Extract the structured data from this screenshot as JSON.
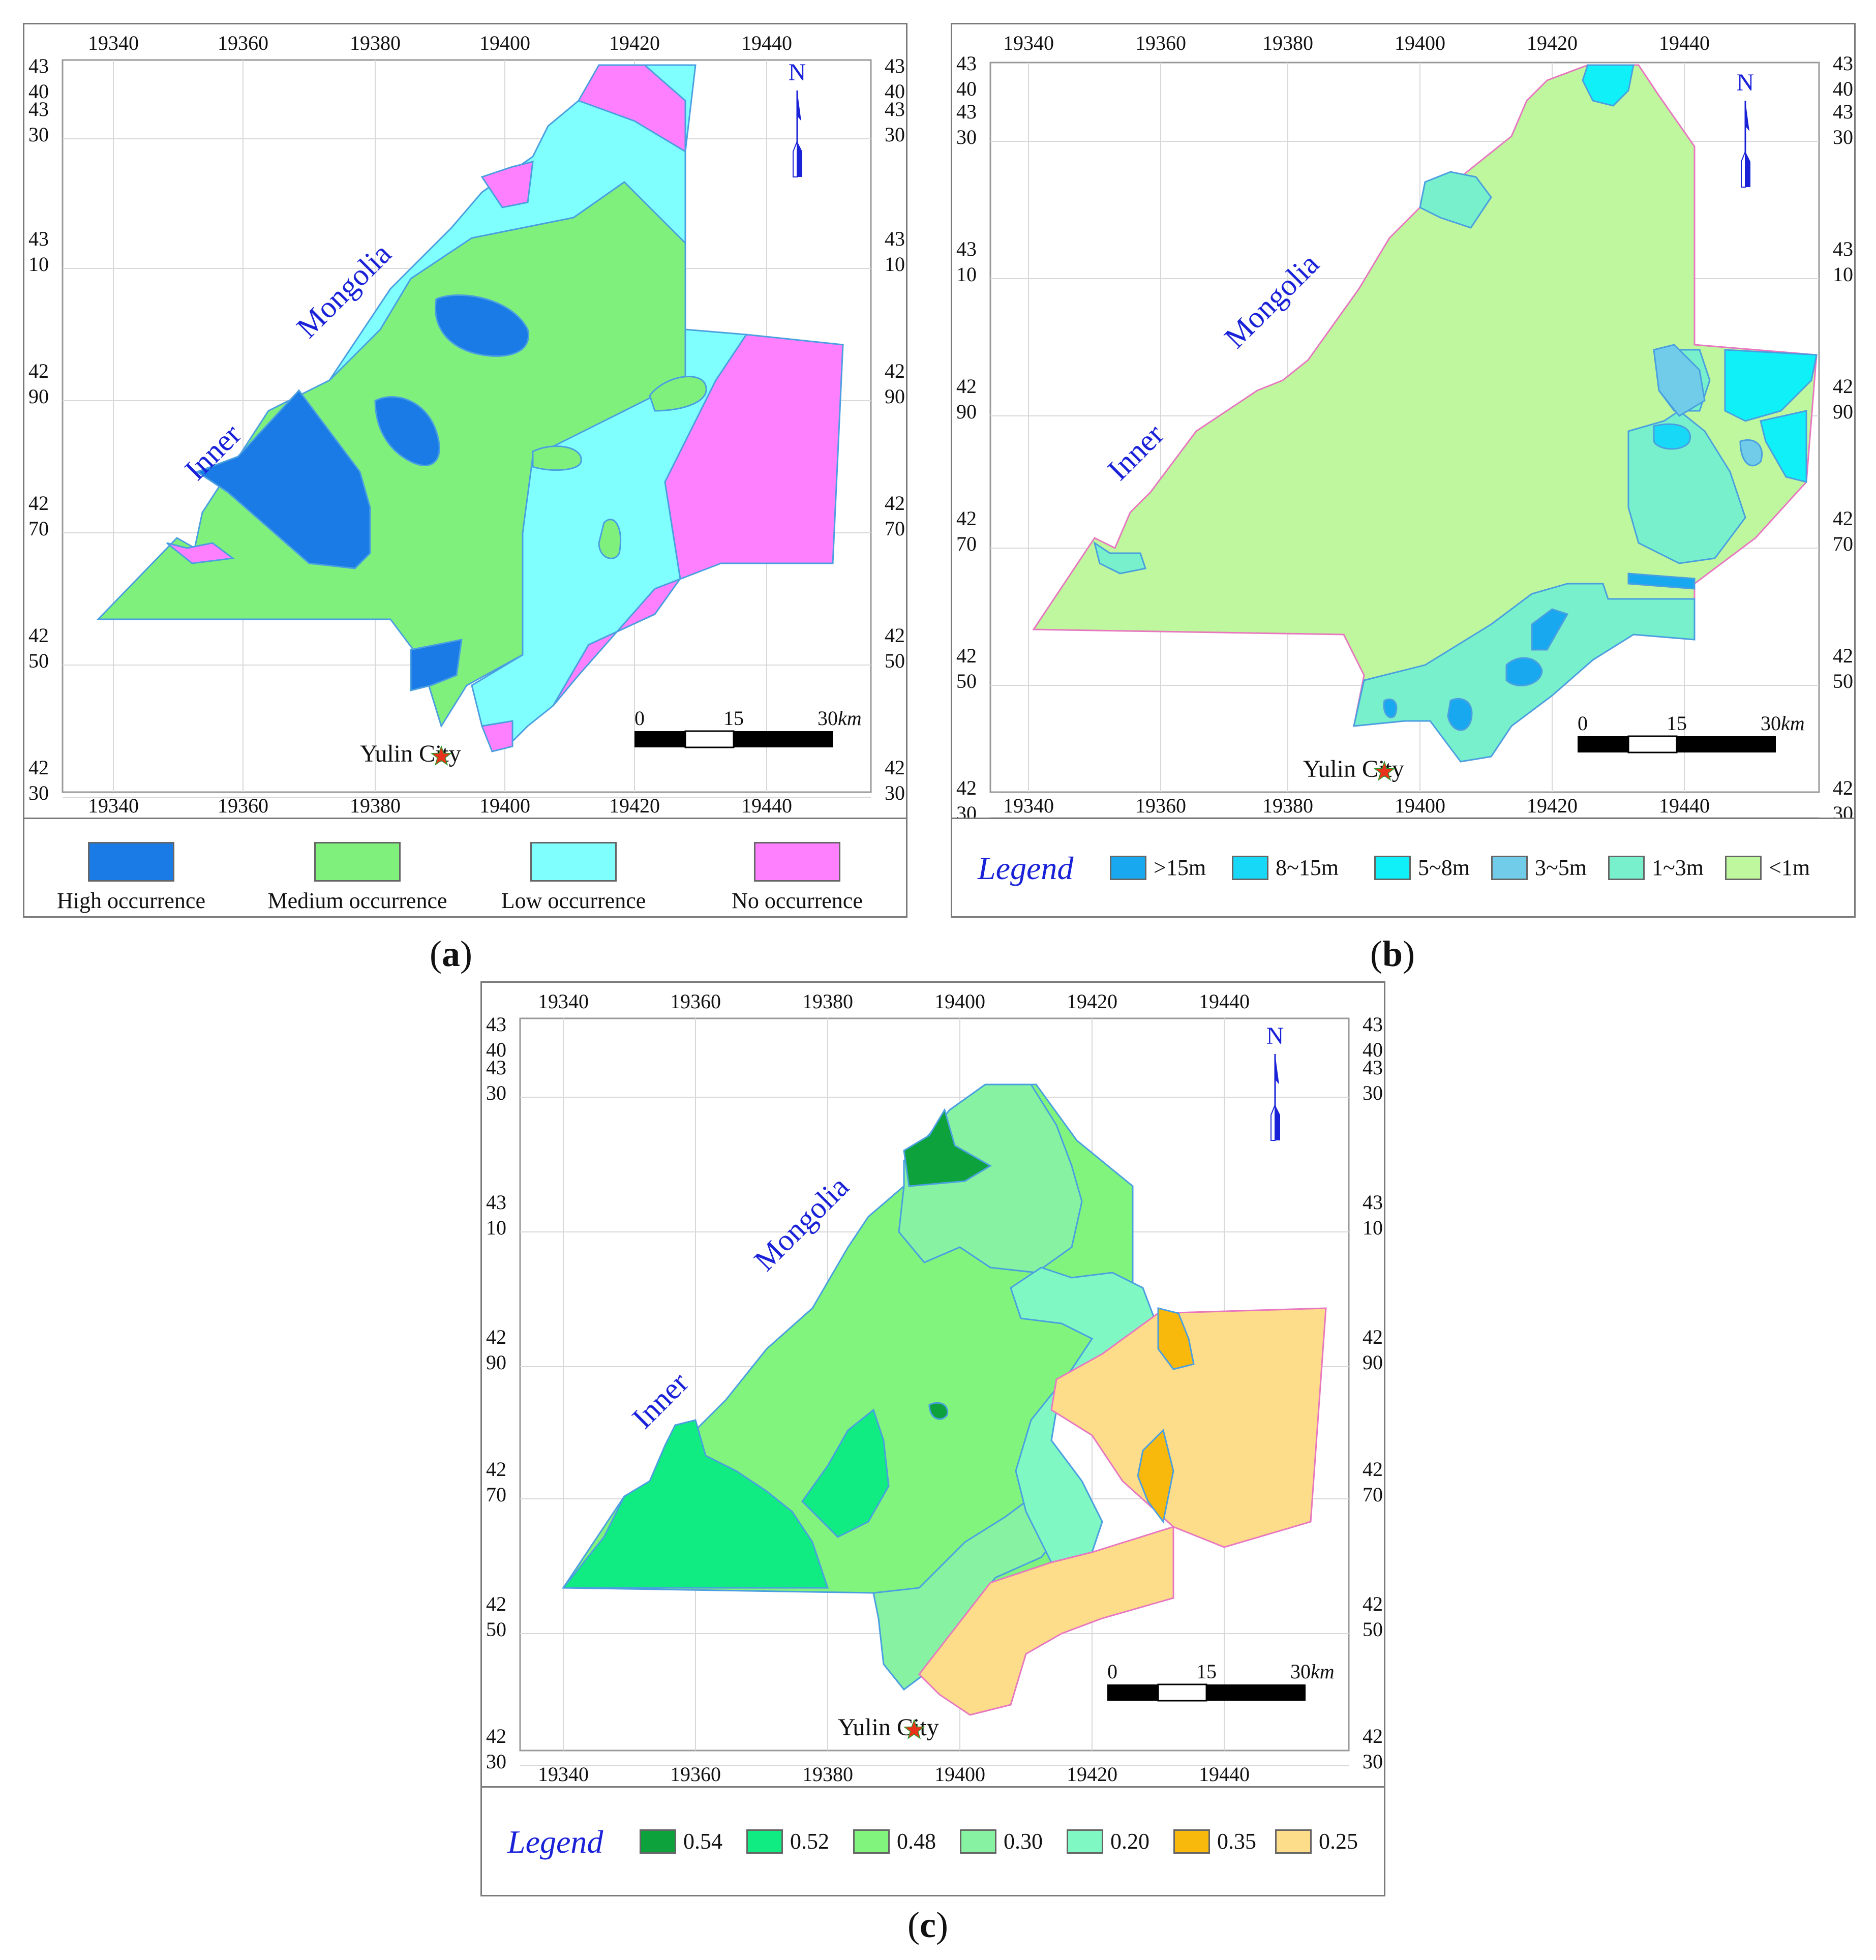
{
  "grid": {
    "x_labels": [
      "19340",
      "19360",
      "19380",
      "19400",
      "19420",
      "19440"
    ],
    "y_labels": [
      [
        "43",
        "40"
      ],
      [
        "43",
        "30"
      ],
      [
        "43",
        "10"
      ],
      [
        "42",
        "90"
      ],
      [
        "42",
        "70"
      ],
      [
        "42",
        "50"
      ],
      [
        "42",
        "30"
      ]
    ]
  },
  "map_labels": {
    "region_word1": "Inner",
    "region_word2": "Mongolia",
    "city": "Yulin City",
    "north": "N"
  },
  "scalebar": {
    "zero": "0",
    "mid": "15",
    "end": "30",
    "unit": "km"
  },
  "panels": [
    {
      "caption_letter": "a",
      "legend_title": "",
      "legend": [
        {
          "label": "High occurrence",
          "color": "#1a7be6"
        },
        {
          "label": "Medium occurrence",
          "color": "#80f07c"
        },
        {
          "label": "Low occurrence",
          "color": "#80ffff"
        },
        {
          "label": "No occurrence",
          "color": "#ff80ff"
        }
      ]
    },
    {
      "caption_letter": "b",
      "legend_title": "Legend",
      "legend": [
        {
          "label": ">15m",
          "color": "#18a8f0"
        },
        {
          "label": "8~15m",
          "color": "#18d8f8"
        },
        {
          "label": "5~8m",
          "color": "#10f0f8"
        },
        {
          "label": "3~5m",
          "color": "#70cce8"
        },
        {
          "label": "1~3m",
          "color": "#78f0cc"
        },
        {
          "label": "<1m",
          "color": "#bef79e"
        }
      ]
    },
    {
      "caption_letter": "c",
      "legend_title": "Legend",
      "legend": [
        {
          "label": "0.54",
          "color": "#0ea23c"
        },
        {
          "label": "0.52",
          "color": "#10ec82"
        },
        {
          "label": "0.48",
          "color": "#80f47c"
        },
        {
          "label": "0.30",
          "color": "#86f2a2"
        },
        {
          "label": "0.20",
          "color": "#80f8c4"
        },
        {
          "label": "0.35",
          "color": "#f8b80c"
        },
        {
          "label": "0.25",
          "color": "#fddc8a"
        }
      ]
    }
  ]
}
